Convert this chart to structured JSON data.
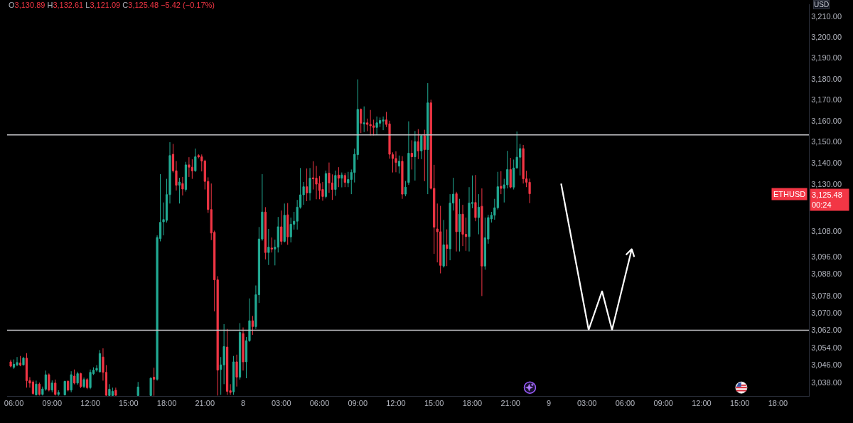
{
  "chart_data": {
    "type": "candlestick",
    "title": "O3,130.89 H3,132.61 L3,121.09 C3,125.48 −5.42 (−0.17%)",
    "ylabel": "USD",
    "x": [
      "--01-07T05:45",
      "--01-07T06:00",
      "--01-07T06:15",
      "--01-07T06:30",
      "--01-07T06:45",
      "--01-07T07:00",
      "--01-07T07:15",
      "--01-07T07:30",
      "--01-07T07:45",
      "--01-07T08:00",
      "--01-07T08:15",
      "--01-07T08:30",
      "--01-07T08:45",
      "--01-07T09:00",
      "--01-07T09:15",
      "--01-07T09:30",
      "--01-07T10:00",
      "--01-07T10:15",
      "--01-07T10:30",
      "--01-07T10:45",
      "--01-07T11:00",
      "--01-07T11:15",
      "--01-07T11:30",
      "--01-07T11:45",
      "--01-07T12:00",
      "--01-07T12:15",
      "--01-07T12:30",
      "--01-07T12:45",
      "--01-07T13:00",
      "--01-07T13:15",
      "--01-07T13:30",
      "--01-07T13:45",
      "--01-07T14:00",
      "--01-07T15:45",
      "--01-07T16:45",
      "--01-07T17:00",
      "--01-07T17:15",
      "--01-07T17:30",
      "--01-07T17:45",
      "--01-07T18:00",
      "--01-07T18:15",
      "--01-07T18:30",
      "--01-07T18:45",
      "--01-07T19:00",
      "--01-07T19:15",
      "--01-07T19:30",
      "--01-07T19:45",
      "--01-07T20:00",
      "--01-07T20:15",
      "--01-07T20:30",
      "--01-07T20:45",
      "--01-07T21:00",
      "--01-07T21:15",
      "--01-07T21:30",
      "--01-07T21:45",
      "--01-07T22:00",
      "--01-07T22:15",
      "--01-07T22:30",
      "--01-07T22:45",
      "--01-07T23:00",
      "--01-07T23:15",
      "--01-07T23:30",
      "--01-07T23:45",
      "--01-08T00:00",
      "--01-08T00:15",
      "--01-08T00:30",
      "--01-08T00:45",
      "--01-08T01:00",
      "--01-08T01:15",
      "--01-08T01:30",
      "--01-08T01:45",
      "--01-08T02:00",
      "--01-08T02:15",
      "--01-08T02:30",
      "--01-08T02:45",
      "--01-08T03:00",
      "--01-08T03:15",
      "--01-08T03:30",
      "--01-08T03:45",
      "--01-08T04:00",
      "--01-08T04:15",
      "--01-08T04:30",
      "--01-08T04:45",
      "--01-08T05:00",
      "--01-08T05:15",
      "--01-08T05:30",
      "--01-08T05:45",
      "--01-08T06:00",
      "--01-08T06:15",
      "--01-08T06:30",
      "--01-08T06:45",
      "--01-08T07:00",
      "--01-08T07:15",
      "--01-08T07:30",
      "--01-08T07:45",
      "--01-08T08:00",
      "--01-08T08:15",
      "--01-08T08:30",
      "--01-08T08:45",
      "--01-08T09:00",
      "--01-08T09:15",
      "--01-08T09:30",
      "--01-08T09:45",
      "--01-08T10:00",
      "--01-08T10:15",
      "--01-08T10:30",
      "--01-08T10:45",
      "--01-08T11:00",
      "--01-08T11:15",
      "--01-08T11:30",
      "--01-08T11:45",
      "--01-08T12:00",
      "--01-08T12:15",
      "--01-08T12:30",
      "--01-08T12:45",
      "--01-08T13:00",
      "--01-08T13:15",
      "--01-08T13:30",
      "--01-08T13:45",
      "--01-08T14:00",
      "--01-08T14:15",
      "--01-08T14:30",
      "--01-08T14:45",
      "--01-08T15:00",
      "--01-08T15:15",
      "--01-08T15:30",
      "--01-08T15:45",
      "--01-08T16:00",
      "--01-08T16:15",
      "--01-08T16:30",
      "--01-08T16:45",
      "--01-08T17:00",
      "--01-08T17:15",
      "--01-08T17:30",
      "--01-08T17:45",
      "--01-08T18:00",
      "--01-08T18:15",
      "--01-08T18:30",
      "--01-08T18:45",
      "--01-08T19:00",
      "--01-08T19:15",
      "--01-08T19:30",
      "--01-08T19:45",
      "--01-08T20:00",
      "--01-08T20:15",
      "--01-08T20:30",
      "--01-08T20:45",
      "--01-08T21:00",
      "--01-08T21:15",
      "--01-08T21:30",
      "--01-08T21:45",
      "--01-08T22:00",
      "--01-08T22:15",
      "--01-08T22:30"
    ],
    "ohlc": [
      [
        3047.5,
        3048.5,
        3045,
        3045.5
      ],
      [
        3045,
        3048.6,
        3044.3,
        3046.4
      ],
      [
        3046.1,
        3049.7,
        3045.5,
        3047.2
      ],
      [
        3047,
        3050.2,
        3045.5,
        3046
      ],
      [
        3046.1,
        3049.8,
        3045.8,
        3049.2
      ],
      [
        3049.2,
        3051.5,
        3035.7,
        3038.9
      ],
      [
        3038.9,
        3040.5,
        3035.7,
        3037.8
      ],
      [
        3038.3,
        3039,
        3032.4,
        3033
      ],
      [
        3032.4,
        3038.9,
        3032.1,
        3037.3
      ],
      [
        3037.3,
        3038,
        3032.1,
        3032.6
      ],
      [
        3032.6,
        3036.2,
        3032.1,
        3035.1
      ],
      [
        3035,
        3043.5,
        3034.3,
        3041.6
      ],
      [
        3041.6,
        3042.2,
        3034,
        3034.6
      ],
      [
        3034.6,
        3039,
        3033.6,
        3037.8
      ],
      [
        3037.8,
        3039.4,
        3032.1,
        3032.6
      ],
      [
        3032.6,
        3034.5,
        3032,
        3033.5
      ],
      [
        3032.4,
        3038.8,
        3032.1,
        3038.6
      ],
      [
        3038.6,
        3039,
        3034,
        3034.6
      ],
      [
        3034.6,
        3043.2,
        3033.6,
        3041.6
      ],
      [
        3041,
        3044,
        3037.2,
        3037.8
      ],
      [
        3037.8,
        3043,
        3037,
        3042.1
      ],
      [
        3042.1,
        3042.5,
        3035.5,
        3036.2
      ],
      [
        3036.2,
        3040.3,
        3035.5,
        3039.4
      ],
      [
        3039.4,
        3040,
        3035,
        3035.7
      ],
      [
        3035.7,
        3044,
        3035,
        3042.7
      ],
      [
        3042.1,
        3045,
        3041.5,
        3043.7
      ],
      [
        3043.7,
        3046,
        3043,
        3044.5
      ],
      [
        3042.9,
        3052.9,
        3042.7,
        3051.3
      ],
      [
        3049.7,
        3053.7,
        3038.9,
        3042.7
      ],
      [
        3042.7,
        3046,
        3032,
        3032.2
      ],
      [
        3032.1,
        3037.3,
        3032,
        3035
      ],
      [
        3032.1,
        3035.7,
        3032,
        3034
      ],
      [
        3034.5,
        3035.7,
        3032,
        3032.2
      ],
      [
        3032.1,
        3038.3,
        3032,
        3036
      ],
      [
        3032.1,
        3040.5,
        3032,
        3040
      ],
      [
        3040.5,
        3044.8,
        3032,
        3039.5
      ],
      [
        3039.5,
        3106,
        3038.9,
        3105
      ],
      [
        3104.5,
        3134.7,
        3103.2,
        3112.1
      ],
      [
        3112.3,
        3121.4,
        3106,
        3113.4
      ],
      [
        3113,
        3132.5,
        3112,
        3125.1
      ],
      [
        3125.1,
        3149.8,
        3120.9,
        3143.5
      ],
      [
        3144.1,
        3149,
        3135.5,
        3136.3
      ],
      [
        3136.3,
        3140.9,
        3127,
        3129.5
      ],
      [
        3129.5,
        3133,
        3120.9,
        3131
      ],
      [
        3130.3,
        3133.4,
        3124.7,
        3127.7
      ],
      [
        3127.5,
        3140.5,
        3126.5,
        3139.1
      ],
      [
        3139.1,
        3142.7,
        3133.4,
        3138
      ],
      [
        3138,
        3141.7,
        3132.5,
        3136.3
      ],
      [
        3136.3,
        3146.8,
        3135.8,
        3142.9
      ],
      [
        3143.5,
        3144.1,
        3142.2,
        3142.9
      ],
      [
        3142.9,
        3144,
        3136,
        3140.9
      ],
      [
        3140.9,
        3141.5,
        3127.5,
        3131.3
      ],
      [
        3131.3,
        3133.2,
        3116.5,
        3118.1
      ],
      [
        3118.1,
        3130.3,
        3103.8,
        3107.1
      ],
      [
        3107.4,
        3108.2,
        3070.7,
        3085.3
      ],
      [
        3085.3,
        3087,
        3032.1,
        3043.7
      ],
      [
        3044,
        3049.7,
        3032.4,
        3046.1
      ],
      [
        3046.1,
        3064.8,
        3037.3,
        3054.5
      ],
      [
        3054.3,
        3062.6,
        3032.4,
        3034
      ],
      [
        3034.3,
        3037.3,
        3032.4,
        3033.5
      ],
      [
        3033.8,
        3050.2,
        3032.4,
        3047.5
      ],
      [
        3047.5,
        3050.8,
        3036.2,
        3040.5
      ],
      [
        3040.5,
        3065.3,
        3039.4,
        3061
      ],
      [
        3060.5,
        3063.3,
        3043.5,
        3047.5
      ],
      [
        3047.5,
        3058.9,
        3040,
        3057.2
      ],
      [
        3057.2,
        3076.7,
        3056.7,
        3066.4
      ],
      [
        3066.4,
        3068.6,
        3059.9,
        3063.7
      ],
      [
        3063.7,
        3082.7,
        3062.6,
        3078.4
      ],
      [
        3078.4,
        3109.9,
        3074.6,
        3104.3
      ],
      [
        3104.3,
        3134.7,
        3103.5,
        3116.9
      ],
      [
        3116.9,
        3119.2,
        3094.8,
        3098
      ],
      [
        3098,
        3109,
        3092.2,
        3100.5
      ],
      [
        3100.1,
        3105,
        3098,
        3099.6
      ],
      [
        3099.6,
        3104,
        3092,
        3100.5
      ],
      [
        3100.5,
        3114.6,
        3098,
        3110
      ],
      [
        3110,
        3117.6,
        3101.6,
        3103.2
      ],
      [
        3103.2,
        3120.9,
        3102.7,
        3115.4
      ],
      [
        3115.6,
        3121.1,
        3101.6,
        3105.3
      ],
      [
        3105.3,
        3114.3,
        3102.7,
        3111.2
      ],
      [
        3111.2,
        3117,
        3108.7,
        3112.6
      ],
      [
        3112.6,
        3122.6,
        3108.7,
        3119.2
      ],
      [
        3119.2,
        3137.6,
        3118.5,
        3125
      ],
      [
        3125,
        3131,
        3120.3,
        3128.8
      ],
      [
        3128.8,
        3137.4,
        3122,
        3125.9
      ],
      [
        3125.9,
        3137.6,
        3122.3,
        3132.8
      ],
      [
        3133,
        3140.8,
        3127.5,
        3132.5
      ],
      [
        3132.8,
        3138.6,
        3122.9,
        3130
      ],
      [
        3130.3,
        3133.8,
        3122.9,
        3127
      ],
      [
        3127.5,
        3131,
        3122.2,
        3124.2
      ],
      [
        3124.2,
        3136.4,
        3123.3,
        3135
      ],
      [
        3135.2,
        3140.2,
        3125.9,
        3130.6
      ],
      [
        3130.6,
        3134.6,
        3122.6,
        3127.5
      ],
      [
        3127.5,
        3136.4,
        3124.5,
        3134.1
      ],
      [
        3134.3,
        3138,
        3128.6,
        3132.8
      ],
      [
        3132.8,
        3135.5,
        3128.5,
        3134.3
      ],
      [
        3134.1,
        3135.2,
        3128.6,
        3130.8
      ],
      [
        3130.6,
        3135.8,
        3128.6,
        3132.2
      ],
      [
        3132.2,
        3136.9,
        3125.3,
        3135.5
      ],
      [
        3135.5,
        3146.8,
        3130.8,
        3144.1
      ],
      [
        3143.9,
        3179.7,
        3141.5,
        3165.4
      ],
      [
        3165.4,
        3165.8,
        3154.1,
        3158.8
      ],
      [
        3158.5,
        3166.8,
        3154.6,
        3159
      ],
      [
        3159,
        3161,
        3155,
        3158.2
      ],
      [
        3158.2,
        3165.1,
        3153,
        3157.6
      ],
      [
        3157.6,
        3160.5,
        3153,
        3156.8
      ],
      [
        3156.8,
        3162,
        3153.5,
        3159
      ],
      [
        3158.8,
        3161.5,
        3157,
        3160.1
      ],
      [
        3159.8,
        3162,
        3155.5,
        3160.4
      ],
      [
        3160.4,
        3164.2,
        3157,
        3158.2
      ],
      [
        3158.5,
        3160,
        3142,
        3144.1
      ],
      [
        3143.9,
        3145,
        3135.5,
        3142.1
      ],
      [
        3142.1,
        3145.5,
        3135.6,
        3140.2
      ],
      [
        3138.5,
        3143.5,
        3135,
        3140.8
      ],
      [
        3140.8,
        3143.2,
        3123.1,
        3125.3
      ],
      [
        3125.3,
        3131.5,
        3124.3,
        3128.6
      ],
      [
        3130.8,
        3159.7,
        3129.7,
        3144.6
      ],
      [
        3144.6,
        3150.7,
        3136.9,
        3142.9
      ],
      [
        3142.9,
        3155.1,
        3131.7,
        3150.1
      ],
      [
        3150.1,
        3156,
        3141.8,
        3145.7
      ],
      [
        3145.7,
        3153.5,
        3141.8,
        3152.9
      ],
      [
        3152.9,
        3155.7,
        3131.4,
        3146.3
      ],
      [
        3146.3,
        3177.9,
        3125.3,
        3168.5
      ],
      [
        3168.5,
        3170,
        3127.5,
        3128
      ],
      [
        3128,
        3139.1,
        3097.4,
        3109.8
      ],
      [
        3109,
        3120.9,
        3093.4,
        3107.7
      ],
      [
        3107.7,
        3119.8,
        3088.3,
        3092
      ],
      [
        3091.7,
        3113.2,
        3091,
        3101.6
      ],
      [
        3101.6,
        3108.8,
        3091.7,
        3099.9
      ],
      [
        3099.7,
        3125.3,
        3094.4,
        3121.1
      ],
      [
        3121.1,
        3133,
        3117.6,
        3125.3
      ],
      [
        3125.5,
        3126.4,
        3098.5,
        3107.7
      ],
      [
        3107.7,
        3123.1,
        3098.5,
        3115.9
      ],
      [
        3115.9,
        3120.3,
        3101,
        3106.5
      ],
      [
        3106.5,
        3114.3,
        3098.8,
        3105.4
      ],
      [
        3105.4,
        3128.6,
        3098.5,
        3121.1
      ],
      [
        3120.9,
        3134.1,
        3118.7,
        3121.4
      ],
      [
        3121.4,
        3134.3,
        3112.6,
        3114.3
      ],
      [
        3114.3,
        3125.3,
        3106.5,
        3119.2
      ],
      [
        3119.6,
        3128,
        3077.8,
        3091.7
      ],
      [
        3091.7,
        3114.3,
        3090,
        3104.9
      ],
      [
        3104.3,
        3115.6,
        3102.1,
        3114.3
      ],
      [
        3113.7,
        3117,
        3112,
        3115.4
      ],
      [
        3115.4,
        3123.1,
        3113.3,
        3118.9
      ],
      [
        3118.9,
        3135.8,
        3118.1,
        3128.8
      ],
      [
        3129,
        3136.1,
        3125.3,
        3128
      ],
      [
        3128,
        3132.5,
        3121.4,
        3129.7
      ],
      [
        3129.7,
        3145.7,
        3128,
        3136.9
      ],
      [
        3136.9,
        3142.4,
        3128,
        3128.6
      ],
      [
        3128.6,
        3141.6,
        3127.5,
        3137.6
      ],
      [
        3137.6,
        3154.9,
        3137.4,
        3142.7
      ],
      [
        3142.7,
        3149,
        3134.1,
        3146.8
      ],
      [
        3146.8,
        3148.5,
        3130.3,
        3132.5
      ],
      [
        3132.5,
        3136.3,
        3128.6,
        3130.89
      ],
      [
        3130.89,
        3132.61,
        3121.09,
        3125.48
      ]
    ],
    "colors": [
      "#f23645",
      "#22ab94",
      "#22ab94",
      "#f23645",
      "#22ab94",
      "#f23645",
      "#f23645",
      "#f23645",
      "#22ab94",
      "#f23645",
      "#22ab94",
      "#22ab94",
      "#f23645",
      "#22ab94",
      "#f23645",
      "#22ab94",
      "#22ab94",
      "#f23645",
      "#22ab94",
      "#f23645",
      "#22ab94",
      "#f23645",
      "#22ab94",
      "#f23645",
      "#22ab94",
      "#22ab94",
      "#22ab94",
      "#22ab94",
      "#f23645",
      "#f23645",
      "#22ab94",
      "#22ab94",
      "#f23645",
      "#22ab94",
      "#22ab94",
      "#f23645",
      "#22ab94",
      "#22ab94",
      "#22ab94",
      "#22ab94",
      "#22ab94",
      "#f23645",
      "#f23645",
      "#22ab94",
      "#f23645",
      "#22ab94",
      "#f23645",
      "#f23645",
      "#22ab94",
      "#f23645",
      "#f23645",
      "#f23645",
      "#f23645",
      "#f23645",
      "#f23645",
      "#f23645",
      "#22ab94",
      "#22ab94",
      "#f23645",
      "#f23645",
      "#22ab94",
      "#f23645",
      "#22ab94",
      "#f23645",
      "#22ab94",
      "#22ab94",
      "#f23645",
      "#22ab94",
      "#22ab94",
      "#22ab94",
      "#f23645",
      "#22ab94",
      "#f23645",
      "#22ab94",
      "#22ab94",
      "#f23645",
      "#22ab94",
      "#f23645",
      "#22ab94",
      "#22ab94",
      "#22ab94",
      "#22ab94",
      "#22ab94",
      "#f23645",
      "#22ab94",
      "#f23645",
      "#f23645",
      "#f23645",
      "#f23645",
      "#22ab94",
      "#f23645",
      "#f23645",
      "#22ab94",
      "#f23645",
      "#22ab94",
      "#f23645",
      "#22ab94",
      "#22ab94",
      "#22ab94",
      "#22ab94",
      "#f23645",
      "#22ab94",
      "#f23645",
      "#f23645",
      "#f23645",
      "#22ab94",
      "#22ab94",
      "#22ab94",
      "#f23645",
      "#f23645",
      "#f23645",
      "#f23645",
      "#22ab94",
      "#f23645",
      "#22ab94",
      "#22ab94",
      "#f23645",
      "#22ab94",
      "#f23645",
      "#22ab94",
      "#f23645",
      "#22ab94",
      "#f23645",
      "#f23645",
      "#f23645",
      "#f23645",
      "#22ab94",
      "#f23645",
      "#22ab94",
      "#22ab94",
      "#f23645",
      "#22ab94",
      "#f23645",
      "#f23645",
      "#22ab94",
      "#22ab94",
      "#f23645",
      "#22ab94",
      "#f23645",
      "#22ab94",
      "#22ab94",
      "#22ab94",
      "#22ab94",
      "#22ab94",
      "#f23645",
      "#22ab94",
      "#22ab94",
      "#f23645",
      "#22ab94",
      "#22ab94",
      "#22ab94",
      "#f23645",
      "#f23645",
      "#f23645"
    ],
    "xlim": [
      "--01-07T05:28",
      "--01-09T20:26"
    ],
    "xticks": [
      {
        "value": "--01-07T06:00",
        "label": "06:00"
      },
      {
        "value": "--01-07T09:00",
        "label": "09:00"
      },
      {
        "value": "--01-07T12:00",
        "label": "12:00"
      },
      {
        "value": "--01-07T15:00",
        "label": "15:00"
      },
      {
        "value": "--01-07T18:00",
        "label": "18:00"
      },
      {
        "value": "--01-07T21:00",
        "label": "21:00"
      },
      {
        "value": "--01-08",
        "label": "8"
      },
      {
        "value": "--01-08T03:00",
        "label": "03:00"
      },
      {
        "value": "--01-08T06:00",
        "label": "06:00"
      },
      {
        "value": "--01-08T09:00",
        "label": "09:00"
      },
      {
        "value": "--01-08T12:00",
        "label": "12:00"
      },
      {
        "value": "--01-08T15:00",
        "label": "15:00"
      },
      {
        "value": "--01-08T18:00",
        "label": "18:00"
      },
      {
        "value": "--01-08T21:00",
        "label": "21:00"
      },
      {
        "value": "--01-09",
        "label": "9"
      },
      {
        "value": "--01-09T03:00",
        "label": "03:00"
      },
      {
        "value": "--01-09T06:00",
        "label": "06:00"
      },
      {
        "value": "--01-09T09:00",
        "label": "09:00"
      },
      {
        "value": "--01-09T12:00",
        "label": "12:00"
      },
      {
        "value": "--01-09T15:00",
        "label": "15:00"
      },
      {
        "value": "--01-09T18:00",
        "label": "18:00"
      }
    ],
    "ylim": [
      3031.9,
      3215.8
    ],
    "yticks": [
      {
        "value": 3210,
        "label": "3,210.00"
      },
      {
        "value": 3200,
        "label": "3,200.00"
      },
      {
        "value": 3190,
        "label": "3,190.00"
      },
      {
        "value": 3180,
        "label": "3,180.00"
      },
      {
        "value": 3170,
        "label": "3,170.00"
      },
      {
        "value": 3160,
        "label": "3,160.00"
      },
      {
        "value": 3150,
        "label": "3,150.00"
      },
      {
        "value": 3140,
        "label": "3,140.00"
      },
      {
        "value": 3130,
        "label": "3,130.00"
      },
      {
        "value": 3108,
        "label": "3,108.00"
      },
      {
        "value": 3096,
        "label": "3,096.00"
      },
      {
        "value": 3088,
        "label": "3,088.00"
      },
      {
        "value": 3078,
        "label": "3,078.00"
      },
      {
        "value": 3070,
        "label": "3,070.00"
      },
      {
        "value": 3062,
        "label": "3,062.00"
      },
      {
        "value": 3054,
        "label": "3,054.00"
      },
      {
        "value": 3046,
        "label": "3,046.00"
      },
      {
        "value": 3038,
        "label": "3,038.00"
      }
    ],
    "log": "y",
    "ref_lines": [
      {
        "axis": "y",
        "value": 3153.3,
        "color": "#c8c8cc"
      },
      {
        "axis": "y",
        "value": 3062,
        "color": "#c8c8cc"
      }
    ],
    "annotations": [
      "ETHUSD",
      "3,125.48\n00:24"
    ]
  }
}
